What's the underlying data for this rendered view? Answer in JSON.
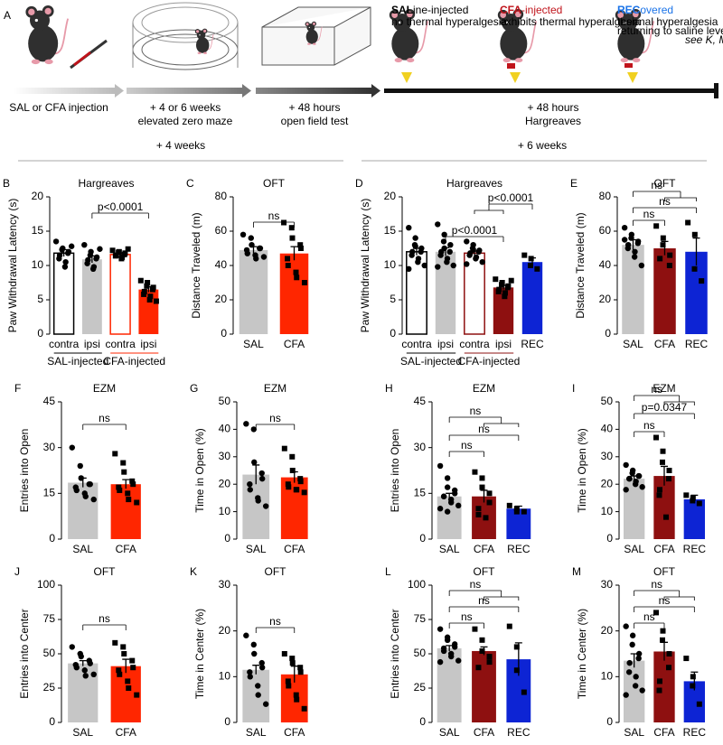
{
  "timeline": {
    "panel": "A",
    "steps": [
      {
        "lines": [
          "SAL or CFA injection"
        ]
      },
      {
        "lines": [
          "+ 4 or 6 weeks",
          "elevated zero maze"
        ]
      },
      {
        "lines": [
          "+ 48 hours",
          "open field test"
        ]
      },
      {
        "lines": [
          "+ 48 hours",
          "Hargreaves"
        ]
      }
    ],
    "outcomes": [
      {
        "prefix": "SAL",
        "rest": "ine-injected",
        "notes": [
          "no thermal hyperalgesia"
        ],
        "color": "#000000"
      },
      {
        "prefix": "CFA",
        "rest": "-injected",
        "notes": [
          "exhibits thermal hyperalgesia"
        ],
        "color": "#c0141b"
      },
      {
        "prefix": "REC",
        "rest": "overed",
        "notes": [
          "thermal hyperalgesia",
          "returning to saline levels",
          "see K, M"
        ],
        "color": "#1a73e8"
      }
    ]
  },
  "sections": [
    "+ 4 weeks",
    "+ 6 weeks"
  ],
  "chart_data": [
    {
      "panel": "B",
      "type": "bar",
      "title": "Hargreaves",
      "ylabel": "Paw Withdrawal Latency (s)",
      "ylim": [
        0,
        20
      ],
      "yticks": [
        0,
        5,
        10,
        15,
        20
      ],
      "categories": [
        "contra",
        "ipsi",
        "contra",
        "ipsi"
      ],
      "category_colors": [
        "#000000",
        "#000000",
        "#ff2600",
        "#ff2600"
      ],
      "values": [
        11.8,
        10.9,
        11.6,
        6.5
      ],
      "errors": [
        0.5,
        0.5,
        0.2,
        0.4
      ],
      "colors": [
        "#000000",
        "#c6c6c6",
        "#ff2600",
        "#ff2600"
      ],
      "filled": [
        false,
        true,
        false,
        true
      ],
      "markers": [
        "circle",
        "circle",
        "square",
        "square"
      ],
      "points": [
        [
          13.5,
          12.5,
          12.3,
          12,
          11.8,
          11.5,
          11,
          10.5,
          9.8,
          12.8
        ],
        [
          13,
          12,
          11.5,
          11.2,
          11,
          10.8,
          10.3,
          9.8,
          9.5,
          12.4
        ],
        [
          12.2,
          12,
          11.9,
          11.8,
          11.6,
          11.5,
          11.4,
          11.2,
          11,
          12.4
        ],
        [
          7.8,
          7.5,
          7,
          6.8,
          6.5,
          6.2,
          5.8,
          5.5,
          5,
          4.8
        ]
      ],
      "groups": [
        "SAL-injected",
        "CFA-injected"
      ],
      "group_colors": [
        "#000000",
        "#ff2600"
      ],
      "annotations": [
        "p<0.0001"
      ]
    },
    {
      "panel": "C",
      "type": "bar",
      "title": "OFT",
      "ylabel": "Distance Traveled (m)",
      "ylim": [
        0,
        80
      ],
      "yticks": [
        0,
        20,
        40,
        60,
        80
      ],
      "categories": [
        "SAL",
        "CFA"
      ],
      "category_colors": [
        "#000000",
        "#ff2600"
      ],
      "values": [
        49,
        47
      ],
      "errors": [
        2,
        4
      ],
      "colors": [
        "#c6c6c6",
        "#ff2600"
      ],
      "filled": [
        true,
        true
      ],
      "markers": [
        "circle",
        "square"
      ],
      "points": [
        [
          58,
          56,
          52,
          50,
          50,
          49,
          47,
          46,
          44,
          45
        ],
        [
          65,
          62,
          56,
          52,
          50,
          44,
          40,
          36,
          33,
          30
        ]
      ],
      "annotations": [
        "ns"
      ]
    },
    {
      "panel": "D",
      "type": "bar",
      "title": "Hargreaves",
      "ylabel": "Paw Withdrawal Latency (s)",
      "ylim": [
        0,
        20
      ],
      "yticks": [
        0,
        5,
        10,
        15,
        20
      ],
      "categories": [
        "contra",
        "ipsi",
        "contra",
        "ipsi",
        "REC"
      ],
      "category_colors": [
        "#000000",
        "#000000",
        "#8e1010",
        "#8e1010",
        "#0d24d4"
      ],
      "values": [
        12,
        12,
        11.8,
        6.8,
        10.5
      ],
      "errors": [
        0.5,
        0.6,
        0.3,
        0.3,
        0.6
      ],
      "colors": [
        "#000000",
        "#c6c6c6",
        "#8e1010",
        "#8e1010",
        "#0d24d4"
      ],
      "filled": [
        false,
        true,
        false,
        true,
        true
      ],
      "markers": [
        "circle",
        "circle",
        "circle",
        "square",
        "square"
      ],
      "points": [
        [
          15.5,
          14,
          13,
          12.5,
          12,
          12,
          11.5,
          11,
          10.5,
          10,
          9.5,
          12.8
        ],
        [
          16,
          14.5,
          13.5,
          13,
          12,
          12,
          11.5,
          11,
          10.5,
          10,
          9.8,
          12.5
        ],
        [
          13.5,
          13,
          12.5,
          12.2,
          12,
          11.8,
          11.5,
          11.2,
          11,
          10.5,
          10.2,
          12.3
        ],
        [
          8,
          7.5,
          7.2,
          7,
          6.8,
          6.5,
          6.2,
          6,
          5.5,
          7.8
        ],
        [
          11.5,
          11,
          10,
          9.5
        ]
      ],
      "groups": [
        "SAL-injected",
        "CFA-injected"
      ],
      "group_colors": [
        "#000000",
        "#8e1010"
      ],
      "annotations": [
        "p<0.0001",
        "p<0.0001"
      ]
    },
    {
      "panel": "E",
      "type": "bar",
      "title": "OFT",
      "ylabel": "Distance Traveled (m)",
      "ylim": [
        0,
        80
      ],
      "yticks": [
        0,
        20,
        40,
        60,
        80
      ],
      "categories": [
        "SAL",
        "CFA",
        "REC"
      ],
      "category_colors": [
        "#000000",
        "#8e1010",
        "#0d24d4"
      ],
      "values": [
        52,
        50,
        48
      ],
      "errors": [
        3,
        4,
        8
      ],
      "colors": [
        "#c6c6c6",
        "#8e1010",
        "#0d24d4"
      ],
      "filled": [
        true,
        true,
        true
      ],
      "markers": [
        "circle",
        "square",
        "square"
      ],
      "points": [
        [
          62,
          58,
          56,
          54,
          53,
          52,
          50,
          48,
          45,
          40,
          55
        ],
        [
          63,
          56,
          52,
          46,
          40,
          44
        ],
        [
          65,
          58,
          38,
          31
        ]
      ],
      "annotations": [
        "ns",
        "ns",
        "ns"
      ]
    },
    {
      "panel": "F",
      "type": "bar",
      "title": "EZM",
      "ylabel": "Entries into Open",
      "ylim": [
        0,
        45
      ],
      "yticks": [
        0,
        15,
        30,
        45
      ],
      "categories": [
        "SAL",
        "CFA"
      ],
      "category_colors": [
        "#000000",
        "#ff2600"
      ],
      "values": [
        18.5,
        18
      ],
      "errors": [
        1.5,
        1.5
      ],
      "colors": [
        "#c6c6c6",
        "#ff2600"
      ],
      "filled": [
        true,
        true
      ],
      "markers": [
        "circle",
        "square"
      ],
      "points": [
        [
          30,
          24,
          20,
          18,
          18,
          17,
          16,
          15,
          14,
          13
        ],
        [
          28,
          25,
          22,
          19,
          18,
          17,
          16,
          15,
          13,
          12
        ]
      ],
      "annotations": [
        "ns"
      ]
    },
    {
      "panel": "G",
      "type": "bar",
      "title": "EZM",
      "ylabel": "Time in Open (%)",
      "ylim": [
        0,
        50
      ],
      "yticks": [
        0,
        10,
        20,
        30,
        40,
        50
      ],
      "categories": [
        "SAL",
        "CFA"
      ],
      "category_colors": [
        "#000000",
        "#ff2600"
      ],
      "values": [
        23.5,
        22.5
      ],
      "errors": [
        3.5,
        2
      ],
      "colors": [
        "#c6c6c6",
        "#ff2600"
      ],
      "filled": [
        true,
        true
      ],
      "markers": [
        "circle",
        "square"
      ],
      "points": [
        [
          42,
          40,
          28,
          24,
          22,
          20,
          18,
          15,
          14,
          12
        ],
        [
          33,
          30,
          25,
          22,
          21,
          20,
          19,
          18,
          18,
          17
        ]
      ],
      "annotations": [
        "ns"
      ]
    },
    {
      "panel": "H",
      "type": "bar",
      "title": "EZM",
      "ylabel": "Entries into Open",
      "ylim": [
        0,
        45
      ],
      "yticks": [
        0,
        15,
        30,
        45
      ],
      "categories": [
        "SAL",
        "CFA",
        "REC"
      ],
      "category_colors": [
        "#000000",
        "#8e1010",
        "#0d24d4"
      ],
      "values": [
        14,
        14,
        10
      ],
      "errors": [
        1,
        2,
        0.8
      ],
      "colors": [
        "#c6c6c6",
        "#8e1010",
        "#0d24d4"
      ],
      "filled": [
        true,
        true,
        true
      ],
      "markers": [
        "circle",
        "square",
        "square"
      ],
      "points": [
        [
          24,
          20,
          17,
          16,
          15,
          14,
          14,
          13,
          12,
          11,
          10,
          9
        ],
        [
          22,
          20,
          17,
          15,
          12,
          10,
          8,
          7
        ],
        [
          11,
          10,
          9,
          9
        ]
      ],
      "annotations": [
        "ns",
        "ns",
        "ns"
      ]
    },
    {
      "panel": "I",
      "type": "bar",
      "title": "EZM",
      "ylabel": "Time in Open (%)",
      "ylim": [
        0,
        50
      ],
      "yticks": [
        0,
        10,
        20,
        30,
        40,
        50
      ],
      "categories": [
        "SAL",
        "CFA",
        "REC"
      ],
      "category_colors": [
        "#000000",
        "#8e1010",
        "#0d24d4"
      ],
      "values": [
        22,
        23,
        14.5
      ],
      "errors": [
        1,
        3.5,
        1.5
      ],
      "colors": [
        "#c6c6c6",
        "#8e1010",
        "#0d24d4"
      ],
      "filled": [
        true,
        true,
        true
      ],
      "markers": [
        "circle",
        "square",
        "square"
      ],
      "points": [
        [
          27,
          25,
          24,
          23,
          23,
          22,
          22,
          21,
          20,
          19,
          18
        ],
        [
          37,
          32,
          28,
          25,
          22,
          18,
          16,
          8
        ],
        [
          16,
          15,
          14,
          13
        ]
      ],
      "annotations": [
        "ns",
        "p=0.0347",
        "ns"
      ]
    },
    {
      "panel": "J",
      "type": "bar",
      "title": "OFT",
      "ylabel": "Entries into Center",
      "ylim": [
        0,
        100
      ],
      "yticks": [
        0,
        25,
        50,
        75,
        100
      ],
      "categories": [
        "SAL",
        "CFA"
      ],
      "category_colors": [
        "#000000",
        "#ff2600"
      ],
      "values": [
        43,
        41
      ],
      "errors": [
        2,
        5
      ],
      "colors": [
        "#c6c6c6",
        "#ff2600"
      ],
      "filled": [
        true,
        true
      ],
      "markers": [
        "circle",
        "square"
      ],
      "points": [
        [
          55,
          50,
          48,
          45,
          43,
          42,
          40,
          38,
          34,
          35
        ],
        [
          58,
          55,
          50,
          45,
          40,
          38,
          35,
          30,
          25,
          20
        ]
      ],
      "annotations": [
        "ns"
      ]
    },
    {
      "panel": "K",
      "type": "bar",
      "title": "OFT",
      "ylabel": "Time in Center (%)",
      "ylim": [
        0,
        30
      ],
      "yticks": [
        0,
        10,
        20,
        30
      ],
      "categories": [
        "SAL",
        "CFA"
      ],
      "category_colors": [
        "#000000",
        "#ff2600"
      ],
      "values": [
        11.5,
        10.5
      ],
      "errors": [
        1,
        1.8
      ],
      "colors": [
        "#c6c6c6",
        "#ff2600"
      ],
      "filled": [
        true,
        true
      ],
      "markers": [
        "circle",
        "square"
      ],
      "points": [
        [
          19,
          17,
          15,
          13,
          12,
          11,
          10,
          8,
          6,
          4
        ],
        [
          15,
          14,
          13,
          12,
          11,
          9,
          8,
          6,
          5,
          3
        ]
      ],
      "annotations": [
        "ns"
      ]
    },
    {
      "panel": "L",
      "type": "bar",
      "title": "OFT",
      "ylabel": "Entries into Center",
      "ylim": [
        0,
        100
      ],
      "yticks": [
        0,
        25,
        50,
        75,
        100
      ],
      "categories": [
        "SAL",
        "CFA",
        "REC"
      ],
      "category_colors": [
        "#000000",
        "#8e1010",
        "#0d24d4"
      ],
      "values": [
        54,
        52,
        46
      ],
      "errors": [
        2,
        3,
        12
      ],
      "colors": [
        "#c6c6c6",
        "#8e1010",
        "#0d24d4"
      ],
      "filled": [
        true,
        true,
        true
      ],
      "markers": [
        "circle",
        "square",
        "square"
      ],
      "points": [
        [
          68,
          62,
          60,
          57,
          55,
          54,
          52,
          50,
          48,
          45,
          44
        ],
        [
          68,
          60,
          52,
          48,
          44,
          40
        ],
        [
          70,
          55,
          38,
          22
        ]
      ],
      "annotations": [
        "ns",
        "ns",
        "ns"
      ]
    },
    {
      "panel": "M",
      "type": "bar",
      "title": "OFT",
      "ylabel": "Time in Center (%)",
      "ylim": [
        0,
        30
      ],
      "yticks": [
        0,
        10,
        20,
        30
      ],
      "categories": [
        "SAL",
        "CFA",
        "REC"
      ],
      "category_colors": [
        "#000000",
        "#8e1010",
        "#0d24d4"
      ],
      "values": [
        13.5,
        15.5,
        9
      ],
      "errors": [
        1.5,
        2,
        2
      ],
      "colors": [
        "#c6c6c6",
        "#8e1010",
        "#0d24d4"
      ],
      "filled": [
        true,
        true,
        true
      ],
      "markers": [
        "circle",
        "square",
        "square"
      ],
      "points": [
        [
          21,
          19,
          17,
          15,
          14,
          13,
          11,
          10,
          8,
          7,
          6
        ],
        [
          24,
          20,
          18,
          15,
          12,
          9,
          7
        ],
        [
          14,
          10,
          8,
          4
        ]
      ],
      "annotations": [
        "ns",
        "ns",
        "ns"
      ]
    }
  ]
}
